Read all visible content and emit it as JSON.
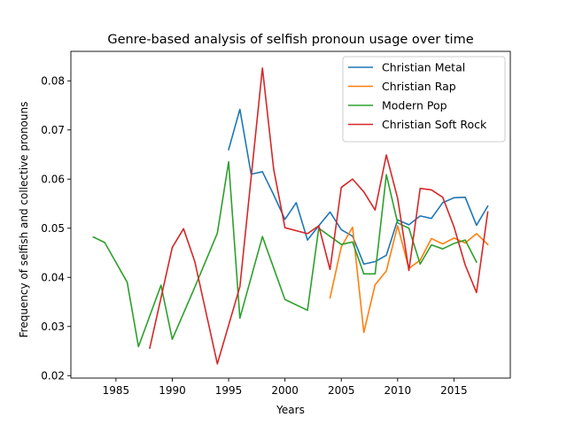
{
  "chart_data": {
    "type": "line",
    "title": "Genre-based analysis of selfish pronoun usage over time",
    "xlabel": "Years",
    "ylabel": "Frequency of selfish and collective pronouns",
    "xlim": [
      1981,
      2020
    ],
    "ylim": [
      0.0195,
      0.086
    ],
    "x_ticks": [
      1985,
      1990,
      1995,
      2000,
      2005,
      2010,
      2015
    ],
    "y_ticks": [
      0.02,
      0.03,
      0.04,
      0.05,
      0.06,
      0.07,
      0.08
    ],
    "y_tick_labels": [
      "0.02",
      "0.03",
      "0.04",
      "0.05",
      "0.06",
      "0.07",
      "0.08"
    ],
    "grid": false,
    "legend_position": "top-right",
    "series": [
      {
        "name": "Christian Metal",
        "color": "#1f77b4",
        "points": [
          [
            1995,
            0.066
          ],
          [
            1996,
            0.0742
          ],
          [
            1997,
            0.061
          ],
          [
            1998,
            0.0615
          ],
          [
            1999,
            0.0568
          ],
          [
            2000,
            0.0518
          ],
          [
            2001,
            0.0552
          ],
          [
            2002,
            0.0476
          ],
          [
            2003,
            0.0505
          ],
          [
            2004,
            0.0533
          ],
          [
            2005,
            0.0497
          ],
          [
            2006,
            0.0484
          ],
          [
            2007,
            0.0427
          ],
          [
            2008,
            0.0432
          ],
          [
            2009,
            0.0445
          ],
          [
            2010,
            0.0517
          ],
          [
            2011,
            0.0507
          ],
          [
            2012,
            0.0525
          ],
          [
            2013,
            0.052
          ],
          [
            2014,
            0.0552
          ],
          [
            2015,
            0.0562
          ],
          [
            2016,
            0.0563
          ],
          [
            2017,
            0.0506
          ],
          [
            2018,
            0.0545
          ]
        ]
      },
      {
        "name": "Christian Rap",
        "color": "#ff7f0e",
        "points": [
          [
            2004,
            0.0358
          ],
          [
            2005,
            0.0462
          ],
          [
            2006,
            0.0502
          ],
          [
            2007,
            0.0288
          ],
          [
            2008,
            0.0385
          ],
          [
            2009,
            0.0413
          ],
          [
            2010,
            0.0505
          ],
          [
            2011,
            0.0418
          ],
          [
            2012,
            0.0435
          ],
          [
            2013,
            0.0479
          ],
          [
            2014,
            0.0468
          ],
          [
            2015,
            0.048
          ],
          [
            2016,
            0.047
          ],
          [
            2017,
            0.0489
          ],
          [
            2018,
            0.0467
          ]
        ]
      },
      {
        "name": "Modern Pop",
        "color": "#2ca02c",
        "points": [
          [
            1983,
            0.0482
          ],
          [
            1984,
            0.0471
          ],
          [
            1986,
            0.039
          ],
          [
            1987,
            0.0259
          ],
          [
            1989,
            0.0384
          ],
          [
            1990,
            0.0274
          ],
          [
            1992,
            0.038
          ],
          [
            1994,
            0.049
          ],
          [
            1995,
            0.0635
          ],
          [
            1996,
            0.0317
          ],
          [
            1998,
            0.0483
          ],
          [
            2000,
            0.0355
          ],
          [
            2002,
            0.0333
          ],
          [
            2003,
            0.05
          ],
          [
            2005,
            0.0467
          ],
          [
            2006,
            0.0472
          ],
          [
            2007,
            0.0407
          ],
          [
            2008,
            0.0407
          ],
          [
            2009,
            0.0609
          ],
          [
            2010,
            0.0511
          ],
          [
            2011,
            0.05
          ],
          [
            2012,
            0.0427
          ],
          [
            2013,
            0.0466
          ],
          [
            2014,
            0.0458
          ],
          [
            2015,
            0.0469
          ],
          [
            2016,
            0.0476
          ],
          [
            2017,
            0.0431
          ]
        ]
      },
      {
        "name": "Christian Soft Rock",
        "color": "#d62728",
        "points": [
          [
            1988,
            0.0256
          ],
          [
            1990,
            0.0461
          ],
          [
            1991,
            0.0499
          ],
          [
            1992,
            0.0432
          ],
          [
            1994,
            0.0224
          ],
          [
            1996,
            0.0381
          ],
          [
            1998,
            0.0826
          ],
          [
            1999,
            0.062
          ],
          [
            2000,
            0.0501
          ],
          [
            2002,
            0.0489
          ],
          [
            2003,
            0.0505
          ],
          [
            2004,
            0.0416
          ],
          [
            2005,
            0.0583
          ],
          [
            2006,
            0.06
          ],
          [
            2007,
            0.0574
          ],
          [
            2008,
            0.0537
          ],
          [
            2009,
            0.0649
          ],
          [
            2010,
            0.0561
          ],
          [
            2011,
            0.0414
          ],
          [
            2012,
            0.0581
          ],
          [
            2013,
            0.0578
          ],
          [
            2014,
            0.0563
          ],
          [
            2015,
            0.0503
          ],
          [
            2016,
            0.0425
          ],
          [
            2017,
            0.0369
          ],
          [
            2018,
            0.0533
          ]
        ]
      }
    ]
  }
}
